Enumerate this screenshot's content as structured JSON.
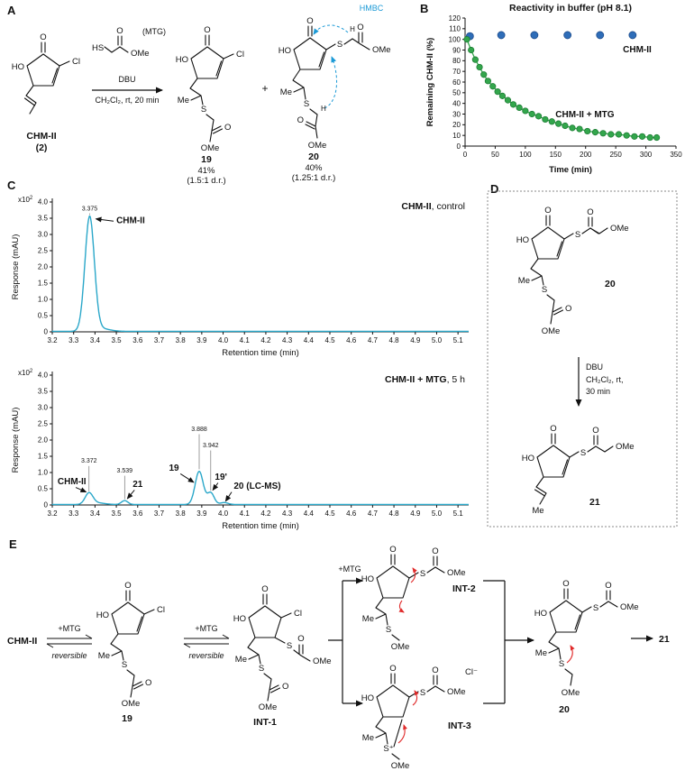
{
  "panel_labels": {
    "a": "A",
    "b": "B",
    "c": "C",
    "d": "D",
    "e": "E"
  },
  "atoms": {
    "O": "O",
    "HO": "HO",
    "Cl": "Cl",
    "Me": "Me",
    "S": "S",
    "OMe": "OMe",
    "HS": "HS",
    "H": "H",
    "S_plus": "S⁺",
    "Cl_minus": "Cl⁻"
  },
  "panel_a": {
    "chm2_name": "CHM-II",
    "chm2_num": "(2)",
    "mtg_label": "(MTG)",
    "dbu": "DBU",
    "conditions": "CH₂Cl₂, rt, 20 min",
    "plus": "+",
    "hmbc": "HMBC",
    "p19": {
      "id": "19",
      "yield": "41%",
      "dr": "(1.5:1 d.r.)"
    },
    "p20": {
      "id": "20",
      "yield": "40%",
      "dr": "(1.25:1 d.r.)"
    }
  },
  "panel_d": {
    "s20": "20",
    "dbu": "DBU",
    "cond1": "CH₂Cl₂, rt,",
    "cond2": "30 min",
    "s21": "21"
  },
  "panel_e": {
    "chm2": "CHM-II",
    "plus_mtg": "+MTG",
    "reversible": "reversible",
    "s19": "19",
    "int1": "INT-1",
    "int2": "INT-2",
    "int3": "INT-3",
    "s20": "20",
    "s21": "21",
    "cl_minus": "Cl⁻"
  },
  "chart_data": [
    {
      "id": "chartB",
      "type": "scatter",
      "title": "Reactivity in buffer (pH 8.1)",
      "xlabel": "Time (min)",
      "ylabel": "Remaining CHM-II (%)",
      "xlim": [
        0,
        350
      ],
      "ylim": [
        0,
        120
      ],
      "xticks": [
        0,
        50,
        100,
        150,
        200,
        250,
        300,
        350
      ],
      "yticks": [
        0,
        10,
        20,
        30,
        40,
        50,
        60,
        70,
        80,
        90,
        100,
        110,
        120
      ],
      "legend_position": "inside-right",
      "series": [
        {
          "name": "CHM-II",
          "color": "#2e6db8",
          "edge": "#1f4d8c",
          "r": 4,
          "line": false,
          "label_pos": [
            262,
            88
          ],
          "points": [
            [
              8,
              103
            ],
            [
              60,
              104
            ],
            [
              115,
              104
            ],
            [
              170,
              104
            ],
            [
              224,
              104
            ],
            [
              278,
              104
            ]
          ]
        },
        {
          "name": "CHM-II + MTG",
          "color": "#33a64c",
          "edge": "#1e7e35",
          "r": 3.2,
          "line": true,
          "label_pos": [
            150,
            27
          ],
          "points": [
            [
              3,
              100
            ],
            [
              10,
              90
            ],
            [
              17,
              81
            ],
            [
              24,
              74
            ],
            [
              31,
              67
            ],
            [
              38,
              61
            ],
            [
              46,
              56
            ],
            [
              54,
              51
            ],
            [
              62,
              47
            ],
            [
              71,
              43
            ],
            [
              80,
              39
            ],
            [
              90,
              36
            ],
            [
              100,
              33
            ],
            [
              111,
              30
            ],
            [
              122,
              28
            ],
            [
              133,
              25
            ],
            [
              144,
              23
            ],
            [
              155,
              21
            ],
            [
              166,
              19
            ],
            [
              178,
              17
            ],
            [
              190,
              16
            ],
            [
              203,
              14
            ],
            [
              216,
              13
            ],
            [
              229,
              12
            ],
            [
              242,
              11
            ],
            [
              255,
              11
            ],
            [
              268,
              10
            ],
            [
              281,
              9
            ],
            [
              294,
              9
            ],
            [
              307,
              8
            ],
            [
              318,
              8
            ]
          ]
        }
      ]
    },
    {
      "id": "chromTop",
      "type": "chromatogram",
      "corner_bold": "CHM-II",
      "corner_rest": ", control",
      "ylabel": "Response (mAU)",
      "xlabel": "Retention time (min)",
      "yexp": "x10",
      "yexp_sup": "2",
      "color": "#2aa7c9",
      "xlim": [
        3.2,
        5.15
      ],
      "ylim": [
        0,
        4.0
      ],
      "xticks": [
        "3.2",
        "3.3",
        "3.4",
        "3.5",
        "3.6",
        "3.7",
        "3.8",
        "3.9",
        "4.0",
        "4.1",
        "4.2",
        "4.3",
        "4.4",
        "4.5",
        "4.6",
        "4.7",
        "4.8",
        "4.9",
        "5.0",
        "5.1"
      ],
      "yticks": [
        "0",
        "0.5",
        "1.0",
        "1.5",
        "2.0",
        "2.5",
        "3.0",
        "3.5",
        "4.0"
      ],
      "peaks": [
        {
          "rt": 3.375,
          "h": 3.52,
          "w": 0.022
        },
        {
          "rt": 3.43,
          "h": 0.08,
          "w": 0.04
        }
      ],
      "peak_labels": [
        {
          "text": "3.375",
          "x": 3.375,
          "y": 3.74,
          "g1": 3.6,
          "g2": 3.65
        }
      ],
      "annotations": [
        {
          "text": "CHM-II",
          "tx": 3.5,
          "ty": 3.35,
          "anchor": "start",
          "arrow": [
            3.487,
            3.41,
            3.405,
            3.48
          ]
        }
      ]
    },
    {
      "id": "chromBot",
      "type": "chromatogram",
      "corner_bold": "CHM-II + MTG",
      "corner_rest": ", 5 h",
      "ylabel": "Response (mAU)",
      "xlabel": "Retention time (min)",
      "yexp": "x10",
      "yexp_sup": "2",
      "color": "#2aa7c9",
      "xlim": [
        3.2,
        5.15
      ],
      "ylim": [
        0,
        4.0
      ],
      "xticks": [
        "3.2",
        "3.3",
        "3.4",
        "3.5",
        "3.6",
        "3.7",
        "3.8",
        "3.9",
        "4.0",
        "4.1",
        "4.2",
        "4.3",
        "4.4",
        "4.5",
        "4.6",
        "4.7",
        "4.8",
        "4.9",
        "5.0",
        "5.1"
      ],
      "yticks": [
        "0",
        "0.5",
        "1.0",
        "1.5",
        "2.0",
        "2.5",
        "3.0",
        "3.5",
        "4.0"
      ],
      "peaks": [
        {
          "rt": 3.372,
          "h": 0.34,
          "w": 0.018
        },
        {
          "rt": 3.41,
          "h": 0.05,
          "w": 0.035
        },
        {
          "rt": 3.539,
          "h": 0.12,
          "w": 0.015
        },
        {
          "rt": 3.888,
          "h": 1.02,
          "w": 0.019
        },
        {
          "rt": 3.942,
          "h": 0.36,
          "w": 0.016
        },
        {
          "rt": 4.005,
          "h": 0.06,
          "w": 0.018
        }
      ],
      "peak_labels": [
        {
          "text": "3.372",
          "x": 3.372,
          "y": 1.3,
          "g1": 0.42,
          "g2": 1.2
        },
        {
          "text": "3.539",
          "x": 3.539,
          "y": 1.0,
          "g1": 0.18,
          "g2": 0.9
        },
        {
          "text": "3.888",
          "x": 3.888,
          "y": 2.28,
          "g1": 1.1,
          "g2": 2.18
        },
        {
          "text": "3.942",
          "x": 3.942,
          "y": 1.78,
          "g1": 0.44,
          "g2": 1.68
        }
      ],
      "annotations": [
        {
          "text": "CHM-II",
          "tx": 3.225,
          "ty": 0.64,
          "anchor": "start",
          "arrow": [
            3.31,
            0.54,
            3.358,
            0.4
          ]
        },
        {
          "text": "21",
          "tx": 3.6,
          "ty": 0.56,
          "anchor": "middle",
          "arrow": [
            3.585,
            0.46,
            3.552,
            0.2
          ]
        },
        {
          "text": "19",
          "tx": 3.77,
          "ty": 1.05,
          "anchor": "middle",
          "arrow": [
            3.8,
            0.96,
            3.862,
            0.7
          ]
        },
        {
          "text": "19'",
          "tx": 3.99,
          "ty": 0.78,
          "anchor": "middle",
          "arrow": [
            3.976,
            0.68,
            3.952,
            0.46
          ]
        },
        {
          "text": "20 (LC-MS)",
          "tx": 4.05,
          "ty": 0.5,
          "anchor": "start",
          "arrow": [
            4.04,
            0.4,
            4.012,
            0.12
          ]
        }
      ]
    }
  ]
}
